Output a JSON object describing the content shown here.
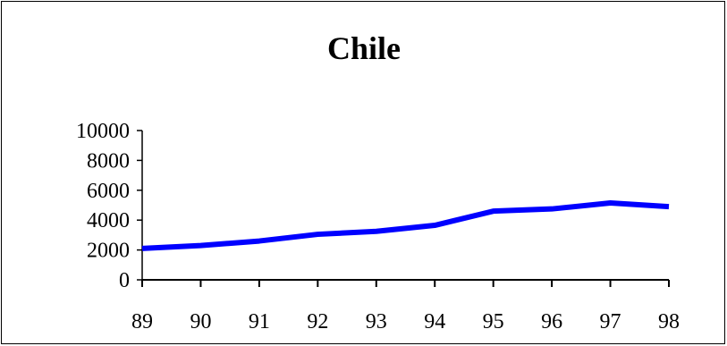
{
  "chart_data": {
    "type": "line",
    "title": "Chile",
    "xlabel": "",
    "ylabel": "",
    "categories": [
      "89",
      "90",
      "91",
      "92",
      "93",
      "94",
      "95",
      "96",
      "97",
      "98"
    ],
    "series": [
      {
        "values": [
          2100,
          2300,
          2600,
          3050,
          3250,
          3650,
          4600,
          4750,
          5150,
          4900
        ],
        "color": "#0000FF"
      }
    ],
    "yticks": [
      "0",
      "2000",
      "4000",
      "6000",
      "8000",
      "10000"
    ],
    "ylim": [
      0,
      10000
    ],
    "grid": false,
    "legend": "none"
  }
}
